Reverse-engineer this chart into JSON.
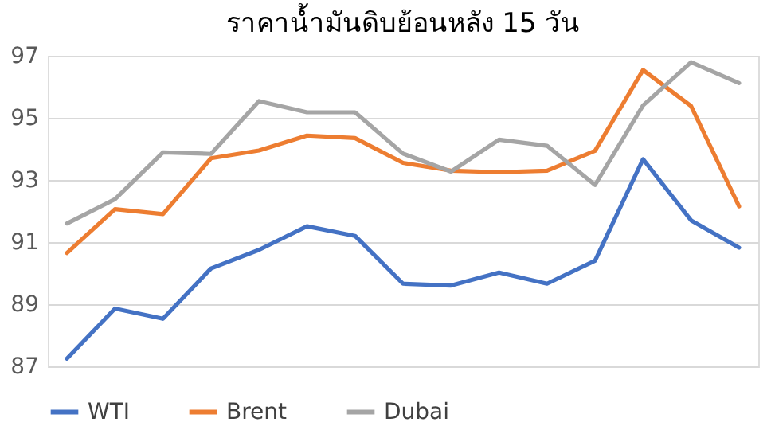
{
  "chart_data": {
    "type": "line",
    "title": "ราคาน้ำมันดิบย้อนหลัง 15 วัน",
    "categories": [
      null,
      null,
      null,
      null,
      null,
      null,
      null,
      null,
      null,
      null,
      null,
      null,
      null,
      null,
      null
    ],
    "series": [
      {
        "name": "WTI",
        "color": "#4472c4",
        "values": [
          87.25,
          88.86,
          88.53,
          90.15,
          90.75,
          91.51,
          91.2,
          89.66,
          89.6,
          90.02,
          89.66,
          90.4,
          93.67,
          91.7,
          90.82
        ]
      },
      {
        "name": "Brent",
        "color": "#ed7d31",
        "values": [
          90.65,
          92.06,
          91.9,
          93.7,
          93.95,
          94.43,
          94.35,
          93.55,
          93.3,
          93.25,
          93.3,
          93.94,
          96.54,
          95.38,
          92.15
        ]
      },
      {
        "name": "Dubai",
        "color": "#a5a5a5",
        "values": [
          91.6,
          92.38,
          93.89,
          93.84,
          95.54,
          95.18,
          95.18,
          93.85,
          93.27,
          94.3,
          94.1,
          92.84,
          95.4,
          96.79,
          96.12
        ]
      }
    ],
    "ylim": [
      87,
      97
    ],
    "yticks": [
      87,
      89,
      91,
      93,
      95,
      97
    ],
    "grid": "y",
    "legend": "bottom",
    "tick_labels": "y",
    "marker": "none",
    "line_style": "solid"
  }
}
